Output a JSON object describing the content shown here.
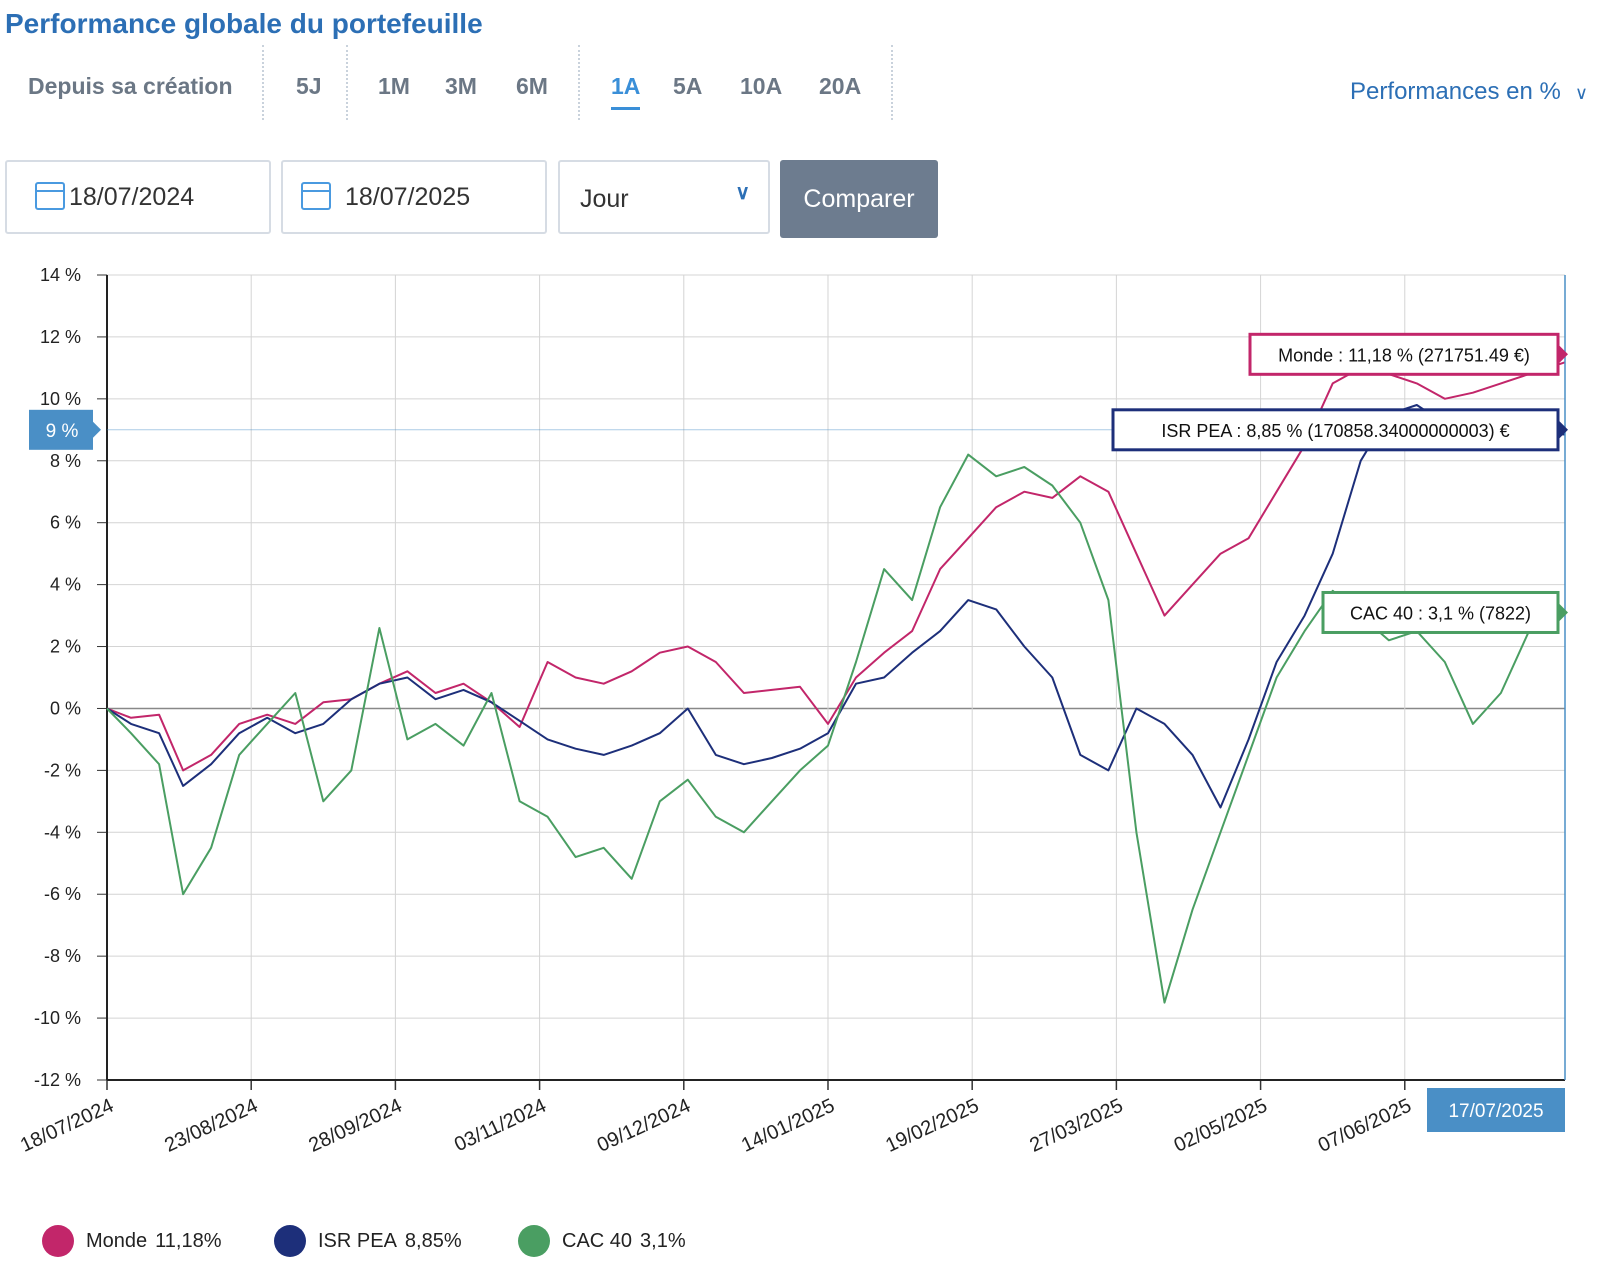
{
  "title": "Performance globale du portefeuille",
  "periods": [
    {
      "label": "Depuis sa création",
      "active": false
    },
    {
      "label": "5J",
      "active": false
    },
    {
      "label": "1M",
      "active": false
    },
    {
      "label": "3M",
      "active": false
    },
    {
      "label": "6M",
      "active": false
    },
    {
      "label": "1A",
      "active": true
    },
    {
      "label": "5A",
      "active": false
    },
    {
      "label": "10A",
      "active": false
    },
    {
      "label": "20A",
      "active": false
    }
  ],
  "performance_select": "Performances en %",
  "start_date": "18/07/2024",
  "end_date": "18/07/2025",
  "frequency": "Jour",
  "compare_button": "Comparer",
  "colors": {
    "monde": "#c2266a",
    "isr": "#1d2f7a",
    "cac": "#4a9e62",
    "accent": "#3a8fd8",
    "cursor": "#4a8fc6"
  },
  "cursor": {
    "y_label": "9 %",
    "date_label": "17/07/2025",
    "y_value": 9
  },
  "tooltips": [
    {
      "series": "Monde",
      "text": "Monde : 11,18 % (271751.49 €)"
    },
    {
      "series": "ISR PEA",
      "text": "ISR PEA : 8,85 % (170858.34000000003) €"
    },
    {
      "series": "CAC 40",
      "text": "CAC 40 : 3,1 % (7822)"
    }
  ],
  "legend": [
    {
      "name": "Monde",
      "value": "11,18%"
    },
    {
      "name": "ISR PEA",
      "value": "8,85%"
    },
    {
      "name": "CAC 40",
      "value": "3,1%"
    }
  ],
  "chart_data": {
    "type": "line",
    "title": "",
    "xlabel": "",
    "ylabel": "",
    "ylim": [
      -12,
      14
    ],
    "yticks": [
      "14 %",
      "12 %",
      "10 %",
      "8 %",
      "6 %",
      "4 %",
      "2 %",
      "0 %",
      "-2 %",
      "-4 %",
      "-6 %",
      "-8 %",
      "-10 %",
      "-12 %"
    ],
    "ytick_values": [
      14,
      12,
      10,
      8,
      6,
      4,
      2,
      0,
      -2,
      -4,
      -6,
      -8,
      -10,
      -12
    ],
    "xticks": [
      "18/07/2024",
      "23/08/2024",
      "28/09/2024",
      "03/11/2024",
      "09/12/2024",
      "14/01/2025",
      "19/02/2025",
      "27/03/2025",
      "02/05/2025",
      "07/06/2025"
    ],
    "x_start": "18/07/2024",
    "x_end": "17/07/2025",
    "grid": true,
    "series": [
      {
        "name": "Monde",
        "x": [
          "18/07/2024",
          "24/07/2024",
          "31/07/2024",
          "06/08/2024",
          "13/08/2024",
          "20/08/2024",
          "27/08/2024",
          "03/09/2024",
          "10/09/2024",
          "17/09/2024",
          "24/09/2024",
          "01/10/2024",
          "08/10/2024",
          "15/10/2024",
          "22/10/2024",
          "29/10/2024",
          "05/11/2024",
          "12/11/2024",
          "19/11/2024",
          "26/11/2024",
          "03/12/2024",
          "10/12/2024",
          "17/12/2024",
          "24/12/2024",
          "31/12/2024",
          "07/01/2025",
          "14/01/2025",
          "21/01/2025",
          "28/01/2025",
          "04/02/2025",
          "11/02/2025",
          "18/02/2025",
          "25/02/2025",
          "04/03/2025",
          "11/03/2025",
          "18/03/2025",
          "25/03/2025",
          "01/04/2025",
          "08/04/2025",
          "15/04/2025",
          "22/04/2025",
          "29/04/2025",
          "06/05/2025",
          "13/05/2025",
          "20/05/2025",
          "27/05/2025",
          "03/06/2025",
          "10/06/2025",
          "17/06/2025",
          "24/06/2025",
          "01/07/2025",
          "08/07/2025",
          "17/07/2025"
        ],
        "values": [
          0.0,
          -0.3,
          -0.2,
          -2.0,
          -1.5,
          -0.5,
          -0.2,
          -0.5,
          0.2,
          0.3,
          0.8,
          1.2,
          0.5,
          0.8,
          0.2,
          -0.6,
          1.5,
          1.0,
          0.8,
          1.2,
          1.8,
          2.0,
          1.5,
          0.5,
          0.6,
          0.7,
          -0.5,
          1.0,
          1.8,
          2.5,
          4.5,
          5.5,
          6.5,
          7.0,
          6.8,
          7.5,
          7.0,
          5.0,
          3.0,
          4.0,
          5.0,
          5.5,
          7.0,
          8.5,
          10.5,
          11.0,
          10.8,
          10.5,
          10.0,
          10.2,
          10.5,
          10.8,
          11.18
        ]
      },
      {
        "name": "ISR PEA",
        "x": [
          "18/07/2024",
          "24/07/2024",
          "31/07/2024",
          "06/08/2024",
          "13/08/2024",
          "20/08/2024",
          "27/08/2024",
          "03/09/2024",
          "10/09/2024",
          "17/09/2024",
          "24/09/2024",
          "01/10/2024",
          "08/10/2024",
          "15/10/2024",
          "22/10/2024",
          "29/10/2024",
          "05/11/2024",
          "12/11/2024",
          "19/11/2024",
          "26/11/2024",
          "03/12/2024",
          "10/12/2024",
          "17/12/2024",
          "24/12/2024",
          "31/12/2024",
          "07/01/2025",
          "14/01/2025",
          "21/01/2025",
          "28/01/2025",
          "04/02/2025",
          "11/02/2025",
          "18/02/2025",
          "25/02/2025",
          "04/03/2025",
          "11/03/2025",
          "18/03/2025",
          "25/03/2025",
          "01/04/2025",
          "08/04/2025",
          "15/04/2025",
          "22/04/2025",
          "29/04/2025",
          "06/05/2025",
          "13/05/2025",
          "20/05/2025",
          "27/05/2025",
          "03/06/2025",
          "10/06/2025",
          "17/06/2025",
          "24/06/2025",
          "01/07/2025",
          "08/07/2025",
          "17/07/2025"
        ],
        "values": [
          0.0,
          -0.5,
          -0.8,
          -2.5,
          -1.8,
          -0.8,
          -0.3,
          -0.8,
          -0.5,
          0.3,
          0.8,
          1.0,
          0.3,
          0.6,
          0.2,
          -0.4,
          -1.0,
          -1.3,
          -1.5,
          -1.2,
          -0.8,
          0.0,
          -1.5,
          -1.8,
          -1.6,
          -1.3,
          -0.8,
          0.8,
          1.0,
          1.8,
          2.5,
          3.5,
          3.2,
          2.0,
          1.0,
          -1.5,
          -2.0,
          0.0,
          -0.5,
          -1.5,
          -3.2,
          -1.0,
          1.5,
          3.0,
          5.0,
          8.0,
          9.5,
          9.8,
          9.2,
          9.0,
          9.2,
          8.9,
          8.85
        ]
      },
      {
        "name": "CAC 40",
        "x": [
          "18/07/2024",
          "24/07/2024",
          "31/07/2024",
          "06/08/2024",
          "13/08/2024",
          "20/08/2024",
          "27/08/2024",
          "03/09/2024",
          "10/09/2024",
          "17/09/2024",
          "24/09/2024",
          "01/10/2024",
          "08/10/2024",
          "15/10/2024",
          "22/10/2024",
          "29/10/2024",
          "05/11/2024",
          "12/11/2024",
          "19/11/2024",
          "26/11/2024",
          "03/12/2024",
          "10/12/2024",
          "17/12/2024",
          "24/12/2024",
          "31/12/2024",
          "07/01/2025",
          "14/01/2025",
          "21/01/2025",
          "28/01/2025",
          "04/02/2025",
          "11/02/2025",
          "18/02/2025",
          "25/02/2025",
          "04/03/2025",
          "11/03/2025",
          "18/03/2025",
          "25/03/2025",
          "01/04/2025",
          "08/04/2025",
          "15/04/2025",
          "22/04/2025",
          "29/04/2025",
          "06/05/2025",
          "13/05/2025",
          "20/05/2025",
          "27/05/2025",
          "03/06/2025",
          "10/06/2025",
          "17/06/2025",
          "24/06/2025",
          "01/07/2025",
          "08/07/2025",
          "17/07/2025"
        ],
        "values": [
          0.0,
          -0.8,
          -1.8,
          -6.0,
          -4.5,
          -1.5,
          -0.5,
          0.5,
          -3.0,
          -2.0,
          2.6,
          -1.0,
          -0.5,
          -1.2,
          0.5,
          -3.0,
          -3.5,
          -4.8,
          -4.5,
          -5.5,
          -3.0,
          -2.3,
          -3.5,
          -4.0,
          -3.0,
          -2.0,
          -1.2,
          1.5,
          4.5,
          3.5,
          6.5,
          8.2,
          7.5,
          7.8,
          7.2,
          6.0,
          3.5,
          -4.0,
          -9.5,
          -6.5,
          -4.0,
          -1.5,
          1.0,
          2.5,
          3.8,
          3.0,
          2.2,
          2.5,
          1.5,
          -0.5,
          0.5,
          2.5,
          3.1
        ]
      }
    ]
  }
}
